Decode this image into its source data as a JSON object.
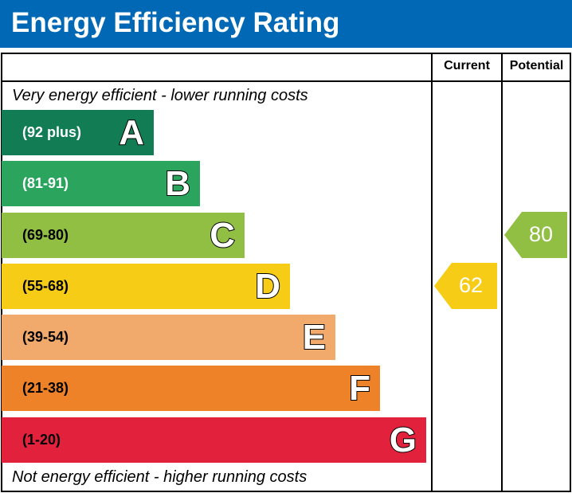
{
  "header": {
    "title": "Energy Efficiency Rating",
    "color": "#0068b4"
  },
  "columns": {
    "current": "Current",
    "potential": "Potential"
  },
  "notes": {
    "top": "Very energy efficient - lower running costs",
    "bottom": "Not energy efficient - higher running costs"
  },
  "chart_data": {
    "type": "bar",
    "title": "Energy Efficiency Rating",
    "bands": [
      {
        "letter": "A",
        "range": "(92 plus)",
        "color": "#127d55",
        "label_color": "#ffffff"
      },
      {
        "letter": "B",
        "range": "(81-91)",
        "color": "#2ba55d",
        "label_color": "#ffffff"
      },
      {
        "letter": "C",
        "range": "(69-80)",
        "color": "#90bf43",
        "label_color": "#000000"
      },
      {
        "letter": "D",
        "range": "(55-68)",
        "color": "#f6cc17",
        "label_color": "#000000"
      },
      {
        "letter": "E",
        "range": "(39-54)",
        "color": "#f2aa6c",
        "label_color": "#000000"
      },
      {
        "letter": "F",
        "range": "(21-38)",
        "color": "#ee8228",
        "label_color": "#000000"
      },
      {
        "letter": "G",
        "range": "(1-20)",
        "color": "#e2223c",
        "label_color": "#000000"
      }
    ],
    "current": {
      "value": "62",
      "band": "D",
      "color": "#f6cc17"
    },
    "potential": {
      "value": "80",
      "band": "C",
      "color": "#90bf43"
    }
  }
}
